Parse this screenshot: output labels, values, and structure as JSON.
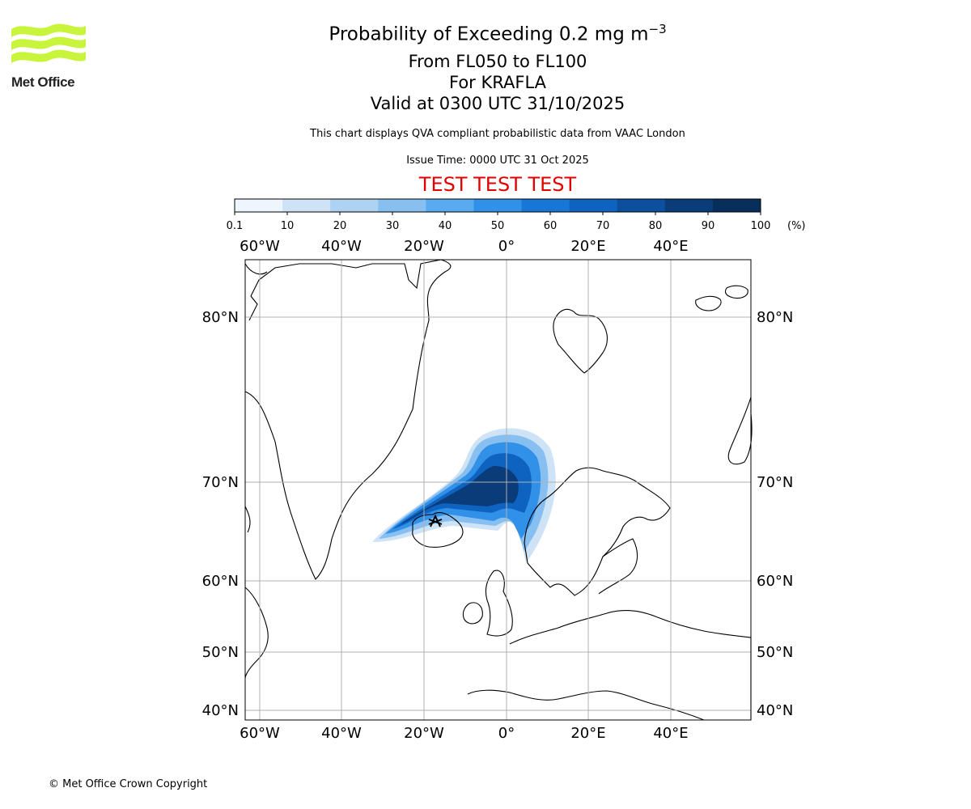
{
  "logo": {
    "text": "Met Office",
    "icon": "met-office-wave-logo",
    "color": "#c8f53c"
  },
  "header": {
    "title_prefix": "Probability of Exceeding 0.2 mg m",
    "title_superscript": "−3",
    "subtitle_levels": "From FL050 to FL100",
    "subtitle_source": "For KRAFLA",
    "subtitle_valid": "Valid at 0300 UTC 31/10/2025",
    "info": "This chart displays QVA compliant probabilistic data from VAAC London",
    "issue_time": "Issue Time: 0000 UTC 31 Oct 2025",
    "test_banner": "TEST TEST TEST"
  },
  "colorbar": {
    "unit": "(%)",
    "ticks": [
      "0.1",
      "10",
      "20",
      "30",
      "40",
      "50",
      "60",
      "70",
      "80",
      "90",
      "100"
    ],
    "colors": [
      "#eef5fc",
      "#cfe3f6",
      "#aed2f1",
      "#87bff0",
      "#5aaaf0",
      "#3190e8",
      "#1877d6",
      "#0f63c0",
      "#0b4f9e",
      "#0a3c7a",
      "#082f5c"
    ]
  },
  "map": {
    "top_lon_labels": [
      "60°W",
      "40°W",
      "20°W",
      "0°",
      "20°E",
      "40°E"
    ],
    "bottom_lon_labels": [
      "60°W",
      "40°W",
      "20°W",
      "0°",
      "20°E",
      "40°E"
    ],
    "left_lat_labels": [
      "80°N",
      "70°N",
      "60°N",
      "50°N",
      "40°N"
    ],
    "right_lat_labels": [
      "80°N",
      "70°N",
      "60°N",
      "50°N",
      "40°N"
    ],
    "volcano_marker": "volcano-marker-icon"
  },
  "footer": {
    "copyright": "© Met Office Crown Copyright"
  }
}
